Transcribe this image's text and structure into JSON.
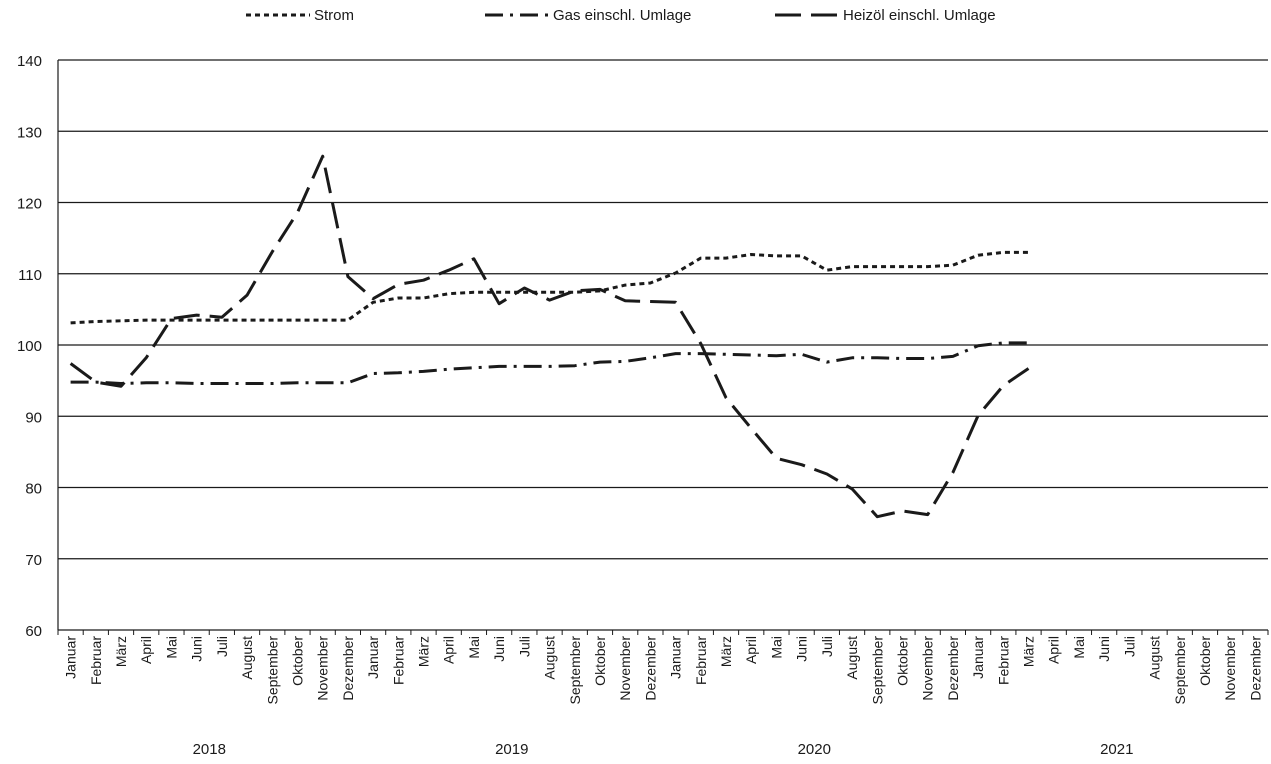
{
  "chart_data": {
    "type": "line",
    "title": "",
    "xlabel": "",
    "ylabel": "",
    "ylim": [
      60,
      140
    ],
    "yticks": [
      "60",
      "70",
      "80",
      "90",
      "100",
      "110",
      "120",
      "130",
      "140"
    ],
    "grid": true,
    "legend_position": "top",
    "years": [
      "2018",
      "2019",
      "2020",
      "2021"
    ],
    "months": [
      "Januar",
      "Februar",
      "März",
      "April",
      "Mai",
      "Juni",
      "Juli",
      "August",
      "September",
      "Oktober",
      "November",
      "Dezember"
    ],
    "series": [
      {
        "name": "Strom",
        "color": "#1a1a1a",
        "style": "dotted",
        "values": [
          103.1,
          103.3,
          103.4,
          103.5,
          103.5,
          103.5,
          103.5,
          103.5,
          103.5,
          103.5,
          103.5,
          103.5,
          106.0,
          106.6,
          106.6,
          107.2,
          107.4,
          107.4,
          107.4,
          107.4,
          107.4,
          107.6,
          108.4,
          108.7,
          110.1,
          112.2,
          112.2,
          112.7,
          112.5,
          112.5,
          110.5,
          111.0,
          111.0,
          111.0,
          111.0,
          111.2,
          112.6,
          113.0,
          113.0
        ]
      },
      {
        "name": "Gas einschl. Umlage",
        "color": "#1a1a1a",
        "style": "dashdot",
        "values": [
          94.8,
          94.8,
          94.6,
          94.7,
          94.7,
          94.6,
          94.6,
          94.6,
          94.6,
          94.7,
          94.7,
          94.7,
          96.0,
          96.1,
          96.3,
          96.6,
          96.8,
          97.0,
          97.0,
          97.0,
          97.1,
          97.6,
          97.7,
          98.2,
          98.8,
          98.8,
          98.7,
          98.6,
          98.5,
          98.7,
          97.6,
          98.2,
          98.2,
          98.1,
          98.1,
          98.4,
          99.9,
          100.3,
          100.3
        ]
      },
      {
        "name": "Heizöl einschl. Umlage",
        "color": "#1a1a1a",
        "style": "dashed",
        "values": [
          97.4,
          94.8,
          94.2,
          98.2,
          103.7,
          104.2,
          103.9,
          107.0,
          113.1,
          118.6,
          126.5,
          109.6,
          106.5,
          108.5,
          109.1,
          110.5,
          112.1,
          105.8,
          108.0,
          106.3,
          107.6,
          107.8,
          106.2,
          106.1,
          106.0,
          100.2,
          92.6,
          88.3,
          84.1,
          83.2,
          81.9,
          79.8,
          75.9,
          76.7,
          76.2,
          82.1,
          90.1,
          94.3,
          96.7
        ]
      }
    ]
  }
}
